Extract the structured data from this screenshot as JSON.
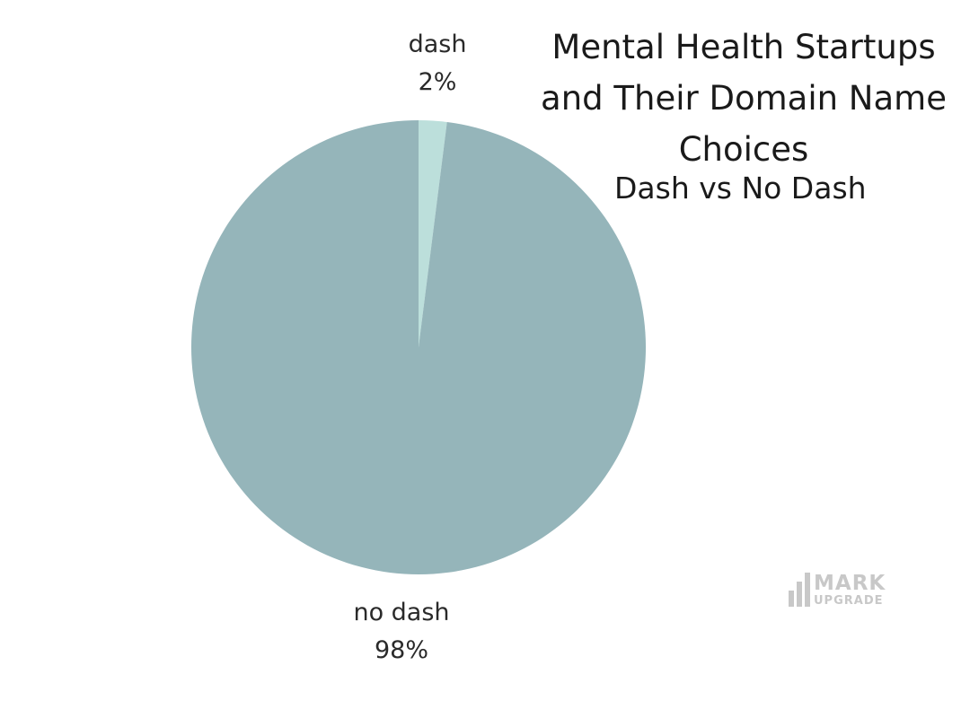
{
  "chart_data": {
    "type": "pie",
    "title": "Mental Health Startups and Their Domain Name Choices",
    "subtitle": "Dash vs No Dash",
    "categories": [
      "dash",
      "no dash"
    ],
    "values": [
      2,
      98
    ],
    "value_labels": [
      "2%",
      "98%"
    ],
    "colors": [
      "#bcdfdb",
      "#95b5ba"
    ],
    "start_angle_deg": 0,
    "direction": "clockwise"
  },
  "brand": {
    "line1": "MARK",
    "line2": "UPGRADE",
    "color": "#c8c8c8"
  }
}
